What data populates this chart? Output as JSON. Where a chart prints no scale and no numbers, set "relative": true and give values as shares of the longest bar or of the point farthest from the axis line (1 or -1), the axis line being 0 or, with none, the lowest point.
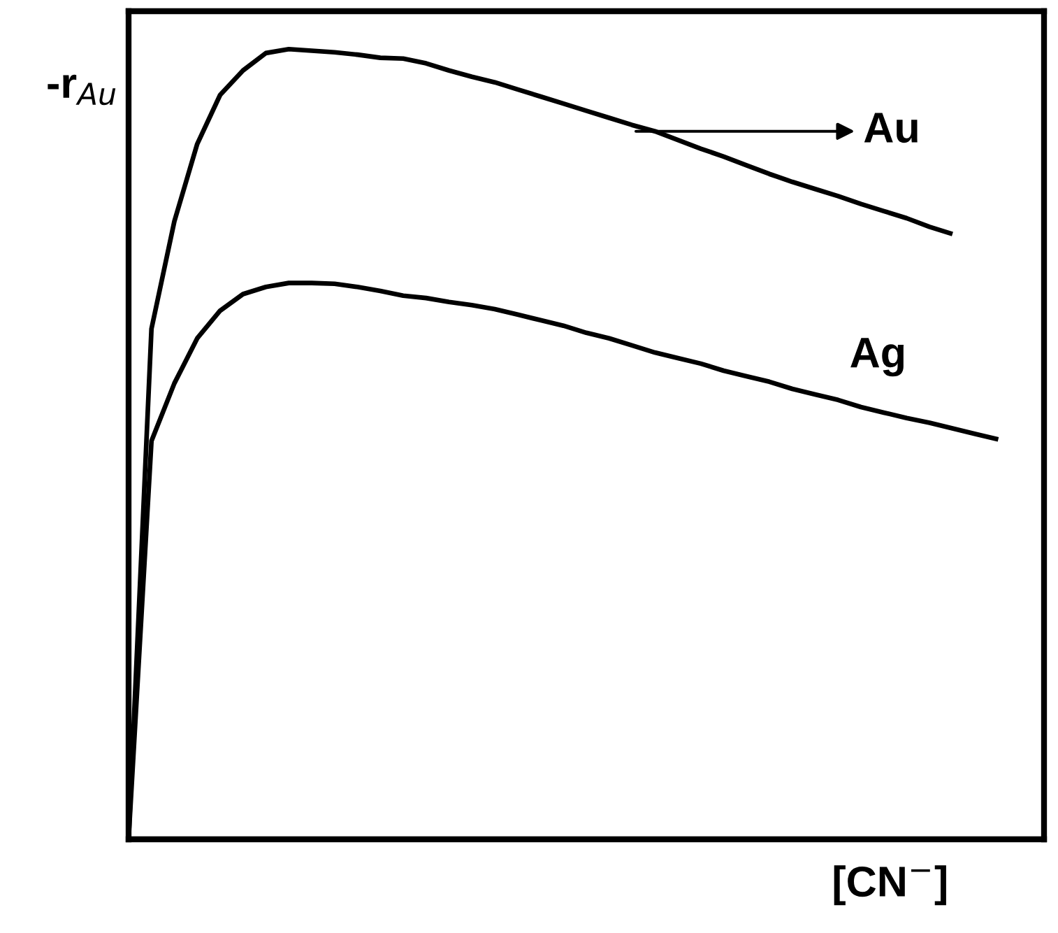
{
  "chart_data": {
    "type": "line",
    "relative": true,
    "ylabel": "-r$_{Au}$",
    "xlabel": "[CN$^{−}$]",
    "categories": [
      null,
      null,
      null,
      null,
      null,
      null,
      null,
      null,
      null,
      null,
      null,
      null,
      null,
      null,
      null,
      null,
      null,
      null,
      null,
      null,
      null,
      null,
      null,
      null,
      null,
      null,
      null,
      null,
      null,
      null,
      null,
      null,
      null,
      null,
      null,
      null,
      null,
      null,
      null,
      null,
      null
    ],
    "series": [
      {
        "name": "Au",
        "color": "#000000",
        "values": [
          0,
          0.646,
          0.782,
          0.88,
          0.942,
          0.973,
          0.995,
          1,
          0.998,
          0.996,
          0.993,
          0.989,
          0.988,
          0.982,
          0.973,
          0.965,
          0.958,
          0.949,
          0.94,
          0.931,
          0.922,
          0.913,
          0.904,
          0.896,
          0.885,
          0.874,
          0.864,
          0.853,
          0.842,
          0.832,
          0.823,
          0.814,
          0.804,
          0.795,
          0.786,
          0.775,
          0.766,
          null,
          null,
          null,
          null
        ]
      },
      {
        "name": "Ag",
        "color": "#000000",
        "values": [
          0,
          0.504,
          0.577,
          0.634,
          0.669,
          0.69,
          0.699,
          0.704,
          0.704,
          0.703,
          0.699,
          0.694,
          0.688,
          0.685,
          0.68,
          0.676,
          0.671,
          0.664,
          0.657,
          0.65,
          0.641,
          0.634,
          0.625,
          0.616,
          0.609,
          0.602,
          0.593,
          0.586,
          0.579,
          0.57,
          0.563,
          0.556,
          0.547,
          0.54,
          0.533,
          0.527,
          0.52,
          0.513,
          0.506,
          null,
          null
        ]
      }
    ],
    "marker": "none",
    "line_style": "solid"
  }
}
